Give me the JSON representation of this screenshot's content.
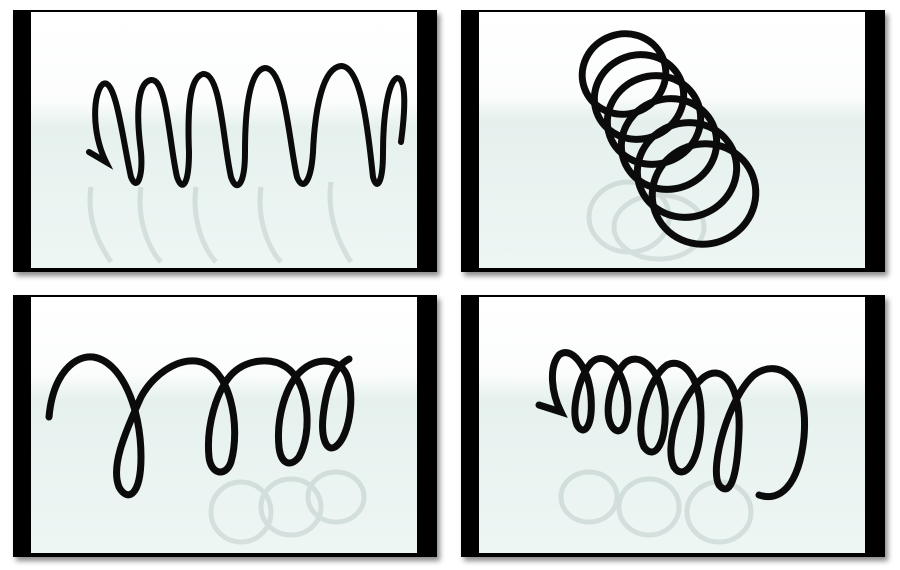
{
  "gallery": {
    "panels": [
      {
        "view": "side-view",
        "description_icon": "coil-spring"
      },
      {
        "view": "end-view",
        "description_icon": "coil-spring"
      },
      {
        "view": "angled-view",
        "description_icon": "coil-spring"
      },
      {
        "view": "angled-view-reverse",
        "description_icon": "coil-spring"
      }
    ],
    "colors": {
      "frame": "#000000",
      "backdrop_top": "#ffffff",
      "floor": "#e3efec",
      "spring": "#0b0b0b"
    }
  }
}
